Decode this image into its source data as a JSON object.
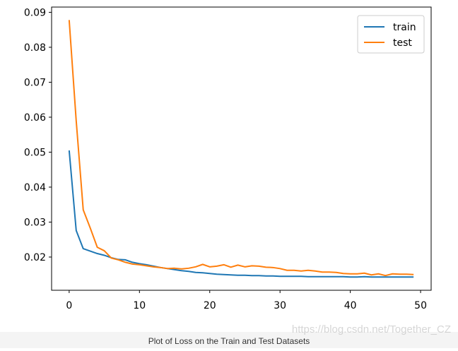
{
  "chart_data": {
    "type": "line",
    "xlim": [
      -2.5,
      51.5
    ],
    "ylim": [
      0.0105,
      0.0915
    ],
    "xticks": [
      0,
      10,
      20,
      30,
      40,
      50
    ],
    "yticks": [
      0.02,
      0.03,
      0.04,
      0.05,
      0.06,
      0.07,
      0.08,
      0.09
    ],
    "grid": false,
    "legend_position": "upper-right",
    "series": [
      {
        "name": "train",
        "color": "#1f77b4",
        "x": [
          0,
          1,
          2,
          3,
          4,
          5,
          6,
          7,
          8,
          9,
          10,
          11,
          12,
          13,
          14,
          15,
          16,
          17,
          18,
          19,
          20,
          21,
          22,
          23,
          24,
          25,
          26,
          27,
          28,
          29,
          30,
          31,
          32,
          33,
          34,
          35,
          36,
          37,
          38,
          39,
          40,
          41,
          42,
          43,
          44,
          45,
          46,
          47,
          48,
          49
        ],
        "values": [
          0.0505,
          0.0276,
          0.0224,
          0.0217,
          0.021,
          0.0205,
          0.0198,
          0.0193,
          0.0192,
          0.0185,
          0.0181,
          0.0178,
          0.0174,
          0.017,
          0.0167,
          0.0164,
          0.0161,
          0.0159,
          0.0156,
          0.0155,
          0.0153,
          0.0151,
          0.015,
          0.0149,
          0.0148,
          0.0148,
          0.0147,
          0.0147,
          0.0146,
          0.0146,
          0.0145,
          0.0145,
          0.0145,
          0.0145,
          0.0144,
          0.0144,
          0.0144,
          0.0144,
          0.0144,
          0.0144,
          0.0143,
          0.0143,
          0.0144,
          0.0143,
          0.0143,
          0.0143,
          0.0143,
          0.0143,
          0.0143,
          0.0143
        ]
      },
      {
        "name": "test",
        "color": "#ff7f0e",
        "x": [
          0,
          1,
          2,
          3,
          4,
          5,
          6,
          7,
          8,
          9,
          10,
          11,
          12,
          13,
          14,
          15,
          16,
          17,
          18,
          19,
          20,
          21,
          22,
          23,
          24,
          25,
          26,
          27,
          28,
          29,
          30,
          31,
          32,
          33,
          34,
          35,
          36,
          37,
          38,
          39,
          40,
          41,
          42,
          43,
          44,
          45,
          46,
          47,
          48,
          49
        ],
        "values": [
          0.0878,
          0.059,
          0.0335,
          0.0283,
          0.0228,
          0.0218,
          0.0197,
          0.0192,
          0.0185,
          0.018,
          0.0178,
          0.0175,
          0.0172,
          0.017,
          0.0167,
          0.0168,
          0.0166,
          0.0168,
          0.0172,
          0.0179,
          0.0172,
          0.0174,
          0.0178,
          0.0171,
          0.0177,
          0.0172,
          0.0175,
          0.0174,
          0.0171,
          0.017,
          0.0167,
          0.0162,
          0.0162,
          0.016,
          0.0162,
          0.016,
          0.0157,
          0.0157,
          0.0156,
          0.0153,
          0.0152,
          0.0152,
          0.0154,
          0.0149,
          0.0152,
          0.0147,
          0.0152,
          0.0151,
          0.0151,
          0.015
        ]
      }
    ]
  },
  "caption": "Plot of Loss on the Train and Test Datasets",
  "watermark": "https://blog.csdn.net/Together_CZ"
}
